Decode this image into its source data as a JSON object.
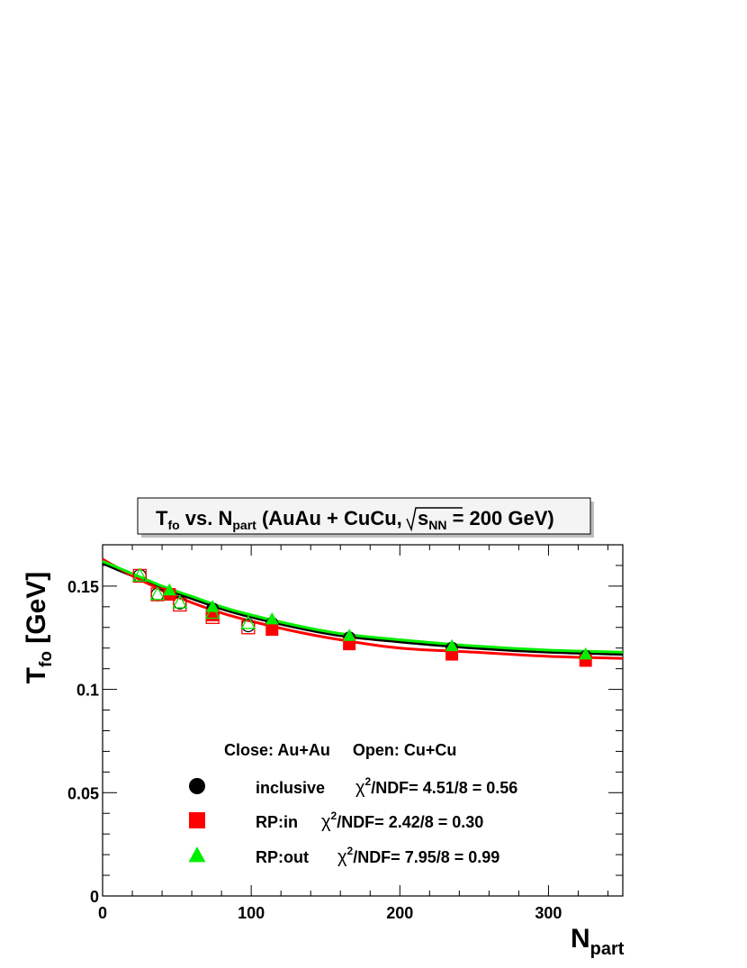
{
  "chart_data": {
    "type": "scatter",
    "title": {
      "main": "T",
      "main_sub": "fo",
      "vs": " vs. N",
      "vs_sub": "part",
      "rest": " (AuAu + CuCu,",
      "sqrt_s": "s",
      "sqrt_sub": "NN",
      "energy": " = 200 GeV)"
    },
    "ylabel": {
      "main": "T",
      "sub": "fo",
      "unit": " [GeV]"
    },
    "xlabel": {
      "main": "N",
      "sub": "part"
    },
    "xlim": [
      0,
      350
    ],
    "ylim": [
      0,
      0.17
    ],
    "x_ticks": [
      {
        "value": 0,
        "label": "0"
      },
      {
        "value": 100,
        "label": "100"
      },
      {
        "value": 200,
        "label": "200"
      },
      {
        "value": 300,
        "label": "300"
      }
    ],
    "y_ticks": [
      {
        "value": 0,
        "label": "0"
      },
      {
        "value": 0.05,
        "label": "0.05"
      },
      {
        "value": 0.1,
        "label": "0.1"
      },
      {
        "value": 0.15,
        "label": "0.15"
      }
    ],
    "x_minor_step": 20,
    "y_minor_step": 0.01,
    "annotation": "Close: Au+Au     Open: Cu+Cu",
    "series": [
      {
        "name": "inclusive",
        "chi2_label": "χ",
        "chi2_exp": "2",
        "chi2_text": "/NDF= 4.51/8 = 0.56",
        "marker": "circle",
        "color": "#000000",
        "x_auau": [
          45,
          74,
          114,
          166,
          235,
          325
        ],
        "y_auau": [
          0.146,
          0.139,
          0.132,
          0.125,
          0.12,
          0.116
        ],
        "x_cucu": [
          25,
          37,
          52,
          74,
          98
        ],
        "y_cucu": [
          0.155,
          0.146,
          0.142,
          0.137,
          0.131
        ],
        "fit_x": [
          0,
          20,
          40,
          60,
          80,
          100,
          130,
          160,
          200,
          250,
          300,
          350
        ],
        "fit_y": [
          0.161,
          0.155,
          0.149,
          0.144,
          0.139,
          0.135,
          0.13,
          0.126,
          0.123,
          0.12,
          0.118,
          0.117
        ]
      },
      {
        "name": "RP:in",
        "chi2_label": "χ",
        "chi2_exp": "2",
        "chi2_text": "/NDF= 2.42/8 = 0.30",
        "marker": "square",
        "color": "#ff0000",
        "x_auau": [
          45,
          74,
          114,
          166,
          235,
          325
        ],
        "y_auau": [
          0.146,
          0.136,
          0.129,
          0.122,
          0.117,
          0.114
        ],
        "x_cucu": [
          25,
          37,
          52,
          74,
          98
        ],
        "y_cucu": [
          0.155,
          0.146,
          0.141,
          0.135,
          0.13
        ],
        "fit_x": [
          0,
          20,
          40,
          60,
          80,
          100,
          130,
          160,
          200,
          250,
          300,
          350
        ],
        "fit_y": [
          0.163,
          0.155,
          0.148,
          0.142,
          0.137,
          0.133,
          0.128,
          0.124,
          0.12,
          0.118,
          0.116,
          0.115
        ]
      },
      {
        "name": "RP:out",
        "chi2_label": "χ",
        "chi2_exp": "2",
        "chi2_text": "/NDF= 7.95/8 = 0.99",
        "marker": "triangle",
        "color": "#00ee00",
        "x_auau": [
          45,
          74,
          114,
          166,
          235,
          325
        ],
        "y_auau": [
          0.148,
          0.14,
          0.134,
          0.126,
          0.121,
          0.117
        ],
        "x_cucu": [
          25,
          37,
          52,
          74,
          98
        ],
        "y_cucu": [
          0.155,
          0.146,
          0.142,
          0.137,
          0.132
        ],
        "fit_x": [
          0,
          20,
          40,
          60,
          80,
          100,
          130,
          160,
          200,
          250,
          300,
          350
        ],
        "fit_y": [
          0.162,
          0.156,
          0.15,
          0.145,
          0.14,
          0.136,
          0.131,
          0.127,
          0.124,
          0.121,
          0.119,
          0.118
        ]
      }
    ]
  }
}
